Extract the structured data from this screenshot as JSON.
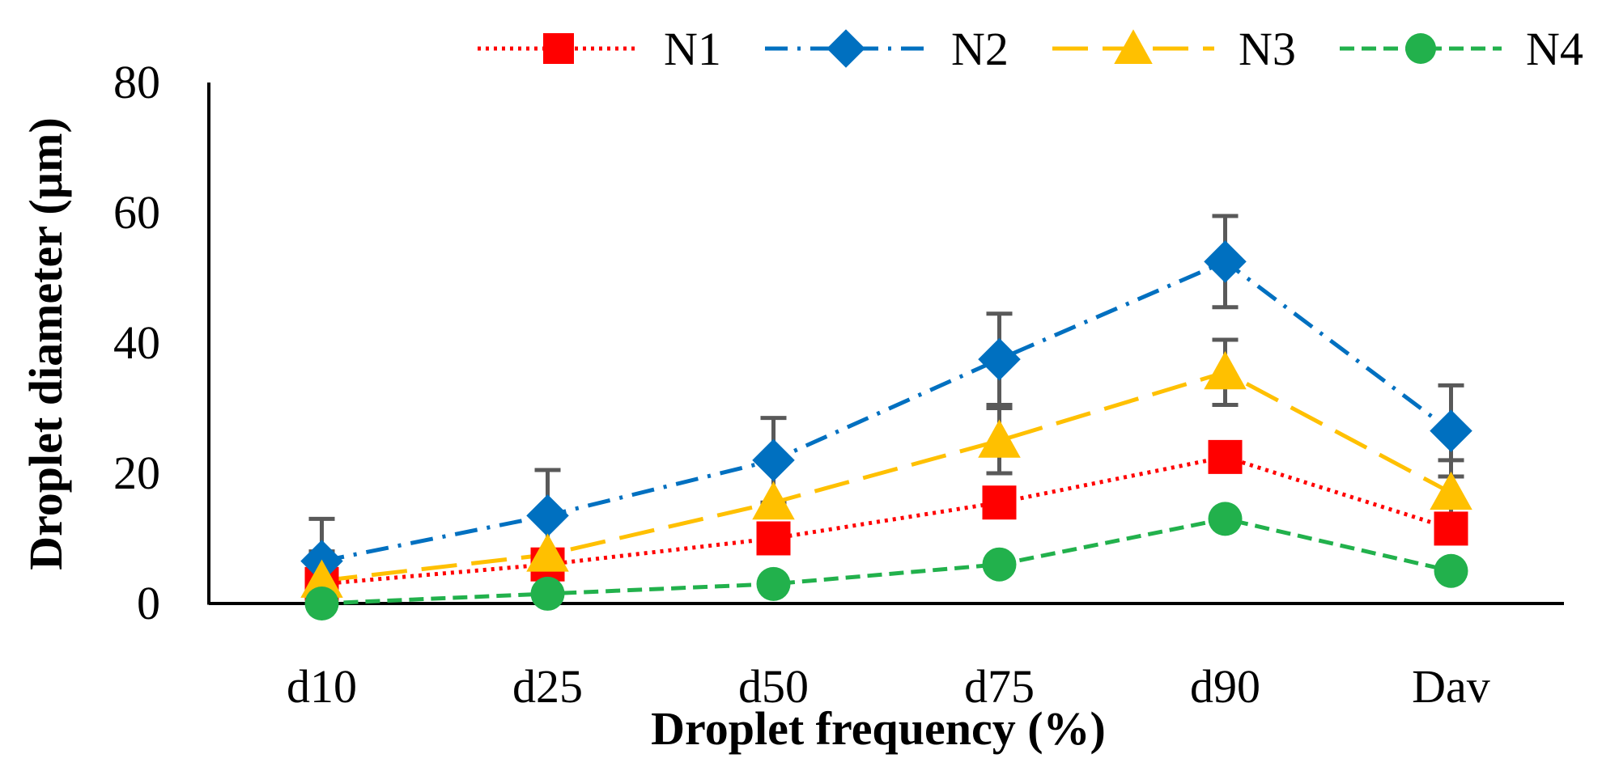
{
  "chart_data": {
    "type": "line",
    "title": "",
    "xlabel": "Droplet frequency (%)",
    "ylabel": "Droplet diameter (µm)",
    "categories": [
      "d10",
      "d25",
      "d50",
      "d75",
      "d90",
      "Dav"
    ],
    "ylim": [
      0,
      80
    ],
    "yticks": [
      0,
      20,
      40,
      60,
      80
    ],
    "grid": false,
    "legend_position": "top",
    "series": [
      {
        "name": "N1",
        "color": "#ff0000",
        "marker": "square",
        "line_style": "dotted",
        "values": [
          3,
          6,
          10,
          15.5,
          22.5,
          11.5
        ],
        "errors": [
          0,
          0,
          0,
          0,
          0,
          0
        ]
      },
      {
        "name": "N2",
        "color": "#0070c0",
        "marker": "diamond",
        "line_style": "dash-dot",
        "values": [
          6.5,
          13.5,
          22,
          37.5,
          52.5,
          26.5
        ],
        "errors": [
          6.5,
          7,
          6.5,
          7,
          7,
          7
        ]
      },
      {
        "name": "N3",
        "color": "#ffc000",
        "marker": "triangle",
        "line_style": "long-dash",
        "values": [
          3.5,
          7.5,
          15.5,
          25,
          35.5,
          17
        ],
        "errors": [
          4.5,
          0,
          0,
          5,
          5,
          5
        ]
      },
      {
        "name": "N4",
        "color": "#22b14c",
        "marker": "circle",
        "line_style": "dashed",
        "values": [
          0,
          1.5,
          3,
          6,
          13,
          5
        ],
        "errors": [
          0,
          0,
          0,
          0,
          0,
          0
        ]
      }
    ]
  }
}
